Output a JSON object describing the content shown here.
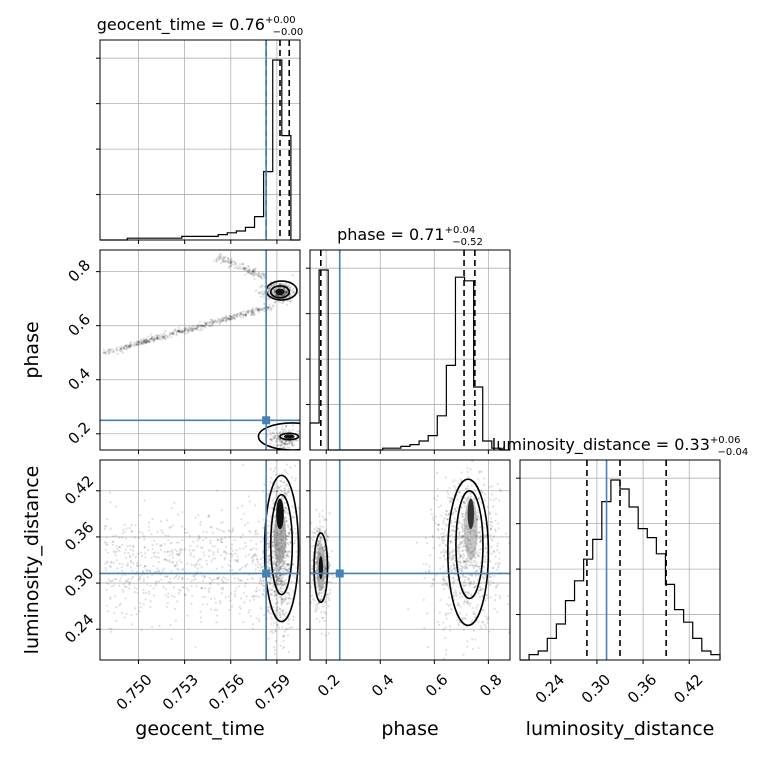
{
  "chart_data": {
    "type": "corner",
    "parameters": [
      {
        "name": "geocent_time",
        "label": "geocent_time",
        "title_text": "geocent_time = 0.76",
        "title_plus": "+0.00",
        "title_minus": "−0.00",
        "range": [
          0.7475,
          0.7605
        ],
        "ticks": [
          0.75,
          0.753,
          0.756,
          0.759
        ],
        "tick_labels": [
          "0.750",
          "0.753",
          "0.756",
          "0.759"
        ],
        "truth": 0.7583,
        "quantiles": [
          0.7583,
          0.7592,
          0.7598
        ],
        "hist": [
          0.0,
          0.0,
          0.0,
          0.01,
          0.01,
          0.01,
          0.01,
          0.01,
          0.01,
          0.02,
          0.02,
          0.02,
          0.02,
          0.03,
          0.04,
          0.05,
          0.07,
          0.13,
          0.38,
          1.0,
          0.58,
          0.0
        ]
      },
      {
        "name": "phase",
        "label": "phase",
        "title_text": "phase = 0.71",
        "title_plus": "+0.04",
        "title_minus": "−0.52",
        "range": [
          0.14,
          0.88
        ],
        "ticks": [
          0.2,
          0.4,
          0.6,
          0.8
        ],
        "tick_labels": [
          "0.2",
          "0.4",
          "0.6",
          "0.8"
        ],
        "truth": 0.25,
        "quantiles": [
          0.18,
          0.71,
          0.75
        ],
        "hist": [
          0.15,
          1.0,
          0.0,
          0.0,
          0.0,
          0.0,
          0.0,
          0.0,
          0.01,
          0.01,
          0.02,
          0.03,
          0.05,
          0.08,
          0.19,
          0.47,
          0.96,
          0.94,
          0.35,
          0.05,
          0.01,
          0.0
        ]
      },
      {
        "name": "luminosity_distance",
        "label": "luminosity_distance",
        "title_text": "luminosity_distance = 0.33",
        "title_plus": "+0.06",
        "title_minus": "−0.04",
        "range": [
          0.2,
          0.46
        ],
        "ticks": [
          0.24,
          0.3,
          0.36,
          0.42
        ],
        "tick_labels": [
          "0.24",
          "0.30",
          "0.36",
          "0.42"
        ],
        "truth": 0.3125,
        "quantiles": [
          0.287,
          0.33,
          0.39
        ],
        "hist": [
          0.0,
          0.03,
          0.05,
          0.12,
          0.2,
          0.33,
          0.44,
          0.56,
          0.67,
          0.88,
          1.0,
          0.95,
          0.85,
          0.73,
          0.68,
          0.59,
          0.42,
          0.28,
          0.21,
          0.12,
          0.05,
          0.03
        ]
      }
    ],
    "truth_color": "#4682b4",
    "grid": true
  }
}
